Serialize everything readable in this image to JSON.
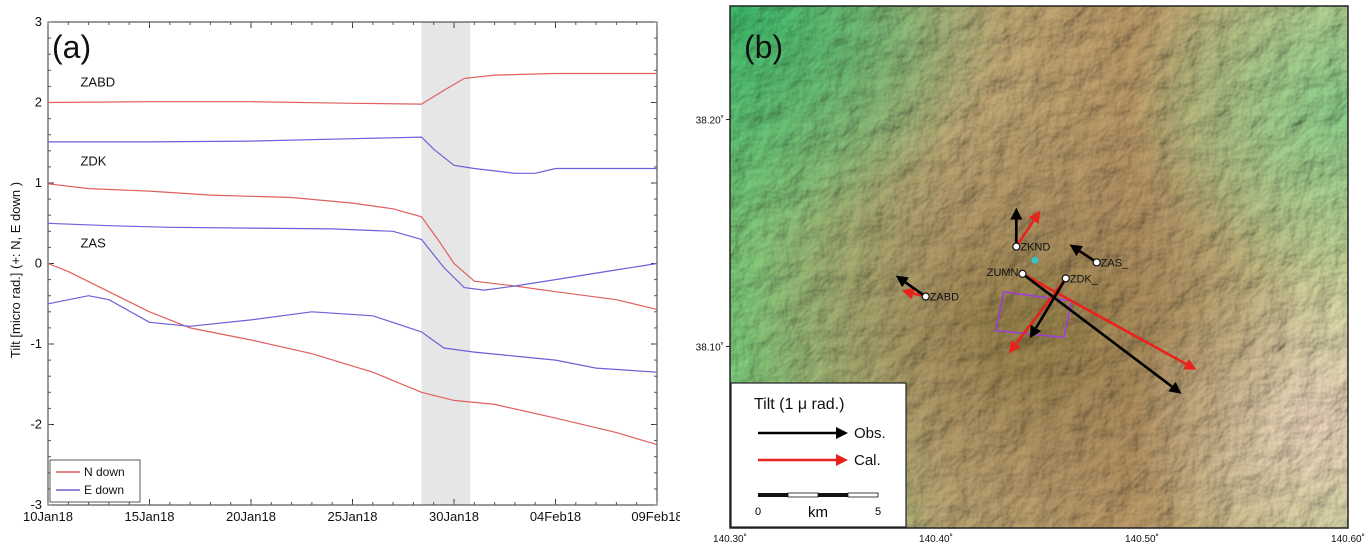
{
  "figure": {
    "panel_a_label": "(a)",
    "panel_b_label": "(b)"
  },
  "chart_data": [
    {
      "type": "line",
      "panel": "(a)",
      "ylabel": "Tilt [micro rad.] (+: N, E down )",
      "xlabel": "",
      "x_unit": "days since 10Jan18",
      "xlim": [
        0,
        30
      ],
      "ylim": [
        -3,
        3
      ],
      "xticks": [
        0,
        5,
        10,
        15,
        20,
        25,
        30
      ],
      "xtick_labels": [
        "10Jan18",
        "15Jan18",
        "20Jan18",
        "25Jan18",
        "30Jan18",
        "04Feb18",
        "09Feb18"
      ],
      "yticks": [
        -3,
        -2,
        -1,
        0,
        1,
        2,
        3
      ],
      "ytick_labels": [
        "-3",
        "-2",
        "-1",
        "0",
        "1",
        "2",
        "3"
      ],
      "shaded_interval": [
        18.4,
        20.8
      ],
      "station_labels": [
        {
          "text": "ZABD",
          "x": 1.6,
          "y": 2.2
        },
        {
          "text": "ZDK",
          "x": 1.6,
          "y": 1.22
        },
        {
          "text": "ZAS",
          "x": 1.6,
          "y": 0.2
        }
      ],
      "legend": {
        "position": "bottom-left",
        "entries": [
          {
            "name": "N down",
            "color": "#e0605f"
          },
          {
            "name": "E down",
            "color": "#6a62d8"
          }
        ]
      },
      "series": [
        {
          "name": "N down",
          "station": "ZABD",
          "color": "#e0605f",
          "x": [
            0,
            5,
            10,
            15,
            18.4,
            19.5,
            20.5,
            22,
            25,
            30
          ],
          "y": [
            2.0,
            2.01,
            2.01,
            1.99,
            1.98,
            2.15,
            2.3,
            2.34,
            2.36,
            2.36
          ]
        },
        {
          "name": "E down",
          "station": "ZABD",
          "color": "#6a62d8",
          "x": [
            0,
            5,
            10,
            15,
            18.4,
            19,
            20,
            21,
            23,
            24,
            25,
            27,
            30
          ],
          "y": [
            1.51,
            1.51,
            1.52,
            1.55,
            1.57,
            1.42,
            1.22,
            1.18,
            1.12,
            1.12,
            1.18,
            1.18,
            1.18
          ]
        },
        {
          "name": "N down",
          "station": "ZDK",
          "color": "#e0605f",
          "x": [
            0,
            2,
            5,
            8,
            12,
            15,
            17,
            18.4,
            19.2,
            20,
            21,
            23,
            25,
            28,
            30
          ],
          "y": [
            0.99,
            0.93,
            0.9,
            0.85,
            0.82,
            0.75,
            0.68,
            0.58,
            0.3,
            0.0,
            -0.22,
            -0.28,
            -0.35,
            -0.45,
            -0.57
          ]
        },
        {
          "name": "E down",
          "station": "ZDK",
          "color": "#6a62d8",
          "x": [
            0,
            3,
            6,
            10,
            14,
            17,
            18.4,
            19.5,
            20.5,
            21.5,
            23,
            25,
            28,
            30
          ],
          "y": [
            0.5,
            0.47,
            0.45,
            0.44,
            0.43,
            0.4,
            0.3,
            -0.05,
            -0.3,
            -0.33,
            -0.28,
            -0.2,
            -0.08,
            0.0
          ]
        },
        {
          "name": "N down",
          "station": "ZAS",
          "color": "#e0605f",
          "x": [
            0,
            1,
            3,
            5,
            7,
            10,
            13,
            16,
            18.4,
            20,
            22,
            25,
            28,
            30
          ],
          "y": [
            0.0,
            -0.1,
            -0.35,
            -0.6,
            -0.8,
            -0.95,
            -1.12,
            -1.35,
            -1.6,
            -1.7,
            -1.75,
            -1.92,
            -2.1,
            -2.25
          ]
        },
        {
          "name": "E down",
          "station": "ZAS",
          "color": "#6a62d8",
          "x": [
            0,
            2,
            3,
            5,
            7,
            10,
            13,
            16,
            18.4,
            19.5,
            21,
            23,
            25,
            27,
            30
          ],
          "y": [
            -0.5,
            -0.4,
            -0.45,
            -0.73,
            -0.78,
            -0.7,
            -0.6,
            -0.65,
            -0.85,
            -1.05,
            -1.1,
            -1.15,
            -1.2,
            -1.3,
            -1.35
          ]
        }
      ]
    },
    {
      "type": "map",
      "panel": "(b)",
      "xlim": [
        140.3,
        140.6
      ],
      "ylim": [
        38.02,
        38.25
      ],
      "xticks": [
        140.3,
        140.4,
        140.5,
        140.6
      ],
      "xtick_labels": [
        "140.30˚",
        "140.40˚",
        "140.50˚",
        "140.60˚"
      ],
      "yticks": [
        38.1,
        38.2
      ],
      "ytick_labels": [
        "38.10˚",
        "38.20˚"
      ],
      "stations": [
        {
          "name": "ZKND",
          "label": "ZKND",
          "lon": 140.439,
          "lat": 38.144
        },
        {
          "name": "ZUMN",
          "label": "ZUMN",
          "lon": 140.442,
          "lat": 38.132
        },
        {
          "name": "ZDK_",
          "label": "ZDK_",
          "lon": 140.463,
          "lat": 38.13
        },
        {
          "name": "ZAS_",
          "label": "ZAS_",
          "lon": 140.478,
          "lat": 38.137
        },
        {
          "name": "ZABD",
          "label": "ZABD",
          "lon": 140.395,
          "lat": 38.122
        }
      ],
      "source_marker": {
        "lon": 140.448,
        "lat": 38.138,
        "color": "#39c4c8"
      },
      "model_rectangle": [
        [
          140.433,
          38.124
        ],
        [
          140.466,
          38.12
        ],
        [
          140.462,
          38.104
        ],
        [
          140.429,
          38.107
        ]
      ],
      "arrows": [
        {
          "station": "ZKND",
          "kind": "Obs.",
          "dx": 0.0,
          "dy": 1.3
        },
        {
          "station": "ZKND",
          "kind": "Cal.",
          "dx": 0.8,
          "dy": 1.2
        },
        {
          "station": "ZAS_",
          "kind": "Obs.",
          "dx": -0.9,
          "dy": 0.6
        },
        {
          "station": "ZAS_",
          "kind": "Cal.",
          "dx": -0.9,
          "dy": 0.6
        },
        {
          "station": "ZUMN",
          "kind": "Obs.",
          "dx": 5.3,
          "dy": -4.0
        },
        {
          "station": "ZUMN",
          "kind": "Cal.",
          "dx": 5.8,
          "dy": -3.2
        },
        {
          "station": "ZDK_",
          "kind": "Obs.",
          "dx": -1.2,
          "dy": -2.0
        },
        {
          "station": "ZDK_",
          "kind": "Cal.",
          "dx": -1.9,
          "dy": -2.5
        },
        {
          "station": "ZABD",
          "kind": "Obs.",
          "dx": -1.0,
          "dy": 0.7
        },
        {
          "station": "ZABD",
          "kind": "Cal.",
          "dx": -0.8,
          "dy": 0.2
        }
      ],
      "legend": {
        "title": "Tilt (1 μ rad.)",
        "entries": [
          {
            "name": "Obs.",
            "color": "#000000"
          },
          {
            "name": "Cal.",
            "color": "#e8231b"
          }
        ],
        "scalebar": {
          "min_label": "0",
          "unit_label": "km",
          "max_label": "5"
        }
      }
    }
  ]
}
